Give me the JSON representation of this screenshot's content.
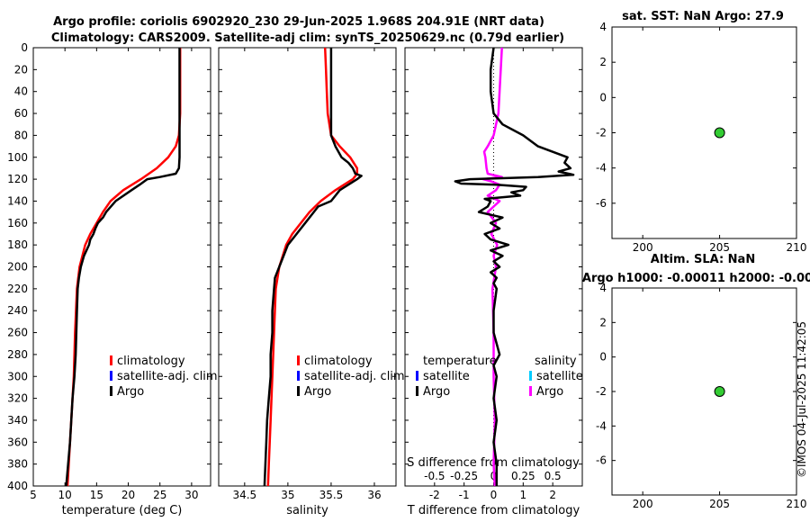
{
  "title_line1": "Argo profile: coriolis 6902920_230 29-Jun-2025 1.968S 204.91E (NRT data)",
  "title_line2": "Climatology: CARS2009. Satellite-adj clim: synTS_20250629.nc (0.79d earlier)",
  "footer_stamp": "©IMOS 04-Jul-2025 11:42:05",
  "colors": {
    "argo": "#000000",
    "clim": "#ff0000",
    "sat": "#0000ff",
    "sat_s": "#00ccff",
    "argo_s": "#ff00ff",
    "marker": "#33cc33"
  },
  "chart_data": [
    {
      "id": "temperature",
      "type": "line",
      "xlabel": "temperature (deg C)",
      "xlim": [
        5,
        33
      ],
      "xticks": [
        5,
        10,
        15,
        20,
        25,
        30
      ],
      "ylim": [
        0,
        400
      ],
      "yticks": [
        0,
        20,
        40,
        60,
        80,
        100,
        120,
        140,
        160,
        180,
        200,
        220,
        240,
        260,
        280,
        300,
        320,
        340,
        360,
        380,
        400
      ],
      "legend": [
        "climatology",
        "satellite-adj. clim",
        "Argo"
      ],
      "series": [
        {
          "name": "climatology",
          "color": "#ff0000",
          "depth": [
            0,
            20,
            40,
            60,
            80,
            90,
            100,
            110,
            120,
            130,
            140,
            150,
            160,
            170,
            180,
            200,
            220,
            260,
            300,
            340,
            380,
            400
          ],
          "values": [
            28.2,
            28.2,
            28.2,
            28.2,
            28.0,
            27.5,
            26.3,
            24.5,
            22.0,
            19.2,
            17.2,
            16.0,
            15.0,
            14.0,
            13.2,
            12.3,
            11.9,
            11.6,
            11.4,
            11.0,
            10.6,
            10.4
          ]
        },
        {
          "name": "Argo",
          "color": "#000000",
          "depth": [
            0,
            20,
            40,
            60,
            80,
            100,
            110,
            115,
            118,
            120,
            125,
            130,
            140,
            150,
            155,
            160,
            165,
            170,
            175,
            180,
            190,
            200,
            210,
            220,
            240,
            260,
            280,
            300,
            320,
            340,
            360,
            380,
            400
          ],
          "values": [
            28.1,
            28.1,
            28.1,
            28.1,
            28.1,
            28.1,
            28.0,
            27.5,
            25.0,
            23.0,
            21.8,
            20.5,
            18.0,
            16.5,
            16.0,
            15.2,
            14.8,
            14.5,
            14.0,
            13.8,
            13.0,
            12.5,
            12.2,
            12.0,
            11.9,
            11.8,
            11.7,
            11.5,
            11.2,
            11.0,
            10.8,
            10.5,
            10.2
          ]
        }
      ]
    },
    {
      "id": "salinity",
      "type": "line",
      "xlabel": "salinity",
      "xlim": [
        34.2,
        36.25
      ],
      "xticks": [
        34.5,
        35,
        35.5,
        36
      ],
      "xtick_labels": [
        "34.5",
        "35",
        "35.5",
        "36"
      ],
      "ylim": [
        0,
        400
      ],
      "legend": [
        "climatology",
        "satellite-adj. clim",
        "Argo"
      ],
      "series": [
        {
          "name": "climatology",
          "color": "#ff0000",
          "depth": [
            0,
            20,
            40,
            60,
            80,
            90,
            100,
            110,
            115,
            120,
            125,
            130,
            140,
            150,
            160,
            170,
            180,
            200,
            220,
            260,
            300,
            340,
            380,
            400
          ],
          "values": [
            35.43,
            35.44,
            35.45,
            35.46,
            35.5,
            35.6,
            35.72,
            35.8,
            35.8,
            35.75,
            35.65,
            35.55,
            35.38,
            35.25,
            35.15,
            35.05,
            34.98,
            34.9,
            34.86,
            34.84,
            34.82,
            34.8,
            34.78,
            34.77
          ]
        },
        {
          "name": "Argo",
          "color": "#000000",
          "depth": [
            0,
            20,
            40,
            60,
            80,
            90,
            100,
            105,
            110,
            115,
            117,
            120,
            125,
            130,
            135,
            140,
            145,
            150,
            160,
            170,
            180,
            190,
            200,
            210,
            220,
            240,
            260,
            280,
            300,
            320,
            340,
            360,
            380,
            400
          ],
          "values": [
            35.5,
            35.5,
            35.5,
            35.5,
            35.5,
            35.55,
            35.62,
            35.7,
            35.75,
            35.78,
            35.85,
            35.8,
            35.7,
            35.6,
            35.55,
            35.5,
            35.35,
            35.3,
            35.2,
            35.1,
            35.0,
            34.95,
            34.9,
            34.85,
            34.84,
            34.82,
            34.82,
            34.8,
            34.8,
            34.78,
            34.76,
            34.75,
            34.74,
            34.73
          ]
        }
      ]
    },
    {
      "id": "difference",
      "type": "line",
      "xlabel": "T difference from climatology",
      "xlabel_top": "S difference from climatology",
      "xlim": [
        -3,
        3
      ],
      "xticks": [
        -2,
        -1,
        0,
        1,
        2
      ],
      "top_xlim": [
        -0.75,
        0.75
      ],
      "top_xticks": [
        -0.5,
        -0.25,
        0,
        0.25,
        0.5
      ],
      "top_xtick_labels": [
        "-0.5",
        "-0.25",
        "0",
        "0.25",
        "0.5"
      ],
      "ylim": [
        0,
        400
      ],
      "legend_t": [
        "temperature",
        "satellite",
        "Argo"
      ],
      "legend_s": [
        "salinity",
        "satellite",
        "Argo"
      ],
      "series": [
        {
          "name": "temperature Argo",
          "color": "#000000",
          "depth": [
            0,
            20,
            40,
            60,
            70,
            80,
            90,
            95,
            100,
            105,
            110,
            113,
            116,
            118,
            120,
            122,
            124,
            125,
            127,
            130,
            132,
            135,
            138,
            140,
            145,
            150,
            155,
            160,
            165,
            170,
            175,
            180,
            185,
            190,
            195,
            200,
            205,
            210,
            215,
            220,
            240,
            260,
            280,
            290,
            300,
            320,
            340,
            360,
            380,
            400
          ],
          "values": [
            0.0,
            -0.1,
            -0.1,
            0.0,
            0.3,
            1.0,
            1.5,
            2.0,
            2.5,
            2.4,
            2.6,
            2.2,
            2.7,
            1.5,
            -0.8,
            -1.3,
            -1.1,
            0.1,
            1.1,
            1.0,
            0.6,
            0.9,
            -0.3,
            -0.1,
            -0.2,
            -0.5,
            0.3,
            -0.1,
            0.2,
            -0.3,
            -0.1,
            0.5,
            -0.1,
            0.3,
            0.0,
            0.2,
            -0.1,
            0.1,
            0.0,
            0.1,
            0.0,
            0.0,
            0.2,
            0.0,
            0.1,
            0.0,
            0.1,
            0.0,
            0.1,
            0.1
          ]
        },
        {
          "name": "salinity Argo",
          "color": "#ff00ff",
          "depth": [
            0,
            20,
            40,
            60,
            80,
            90,
            95,
            100,
            110,
            115,
            118,
            120,
            122,
            125,
            130,
            135,
            140,
            145,
            150,
            160,
            170,
            180,
            190,
            200,
            220,
            260,
            300,
            340,
            380,
            400
          ],
          "values": [
            0.07,
            0.06,
            0.05,
            0.04,
            0.0,
            -0.05,
            -0.08,
            -0.07,
            -0.06,
            -0.05,
            0.07,
            -0.09,
            -0.02,
            0.05,
            0.02,
            -0.05,
            0.05,
            0.0,
            -0.05,
            0.02,
            -0.02,
            0.03,
            0.0,
            0.02,
            -0.01,
            0.0,
            0.0,
            0.01,
            0.0,
            0.01
          ]
        }
      ]
    },
    {
      "id": "sst_panel",
      "type": "scatter",
      "title": "sat. SST: NaN Argo: 27.9",
      "xlim": [
        198,
        210
      ],
      "xticks": [
        200,
        205,
        210
      ],
      "ylim": [
        -8,
        4
      ],
      "yticks": [
        4,
        2,
        0,
        -2,
        -4,
        -6
      ],
      "points": [
        {
          "x": 205,
          "y": -2
        }
      ]
    },
    {
      "id": "sla_panel",
      "type": "scatter",
      "title": "Altim. SLA: NaN",
      "subtitle": "Argo h1000: -0.00011 h2000: -0.00",
      "xlim": [
        198,
        210
      ],
      "xticks": [
        200,
        205,
        210
      ],
      "ylim": [
        -8,
        4
      ],
      "yticks": [
        4,
        2,
        0,
        -2,
        -4,
        -6
      ],
      "points": [
        {
          "x": 205,
          "y": -2
        }
      ]
    }
  ]
}
